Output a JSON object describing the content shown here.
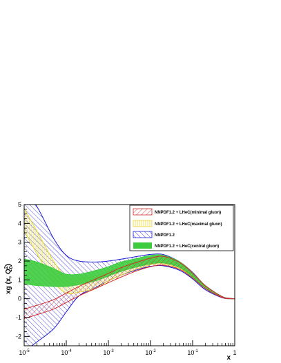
{
  "chart_data": {
    "type": "area",
    "x_scale": "log",
    "xlim": [
      1e-05,
      1
    ],
    "ylim": [
      -2.5,
      5
    ],
    "xlabel": "x",
    "ylabel_main": "xg (x, Q",
    "ylabel_sup": "2",
    "ylabel_sub": "0",
    "ylabel_end": ")",
    "grid": false,
    "legend_position": "top-right",
    "x_ticks": [
      {
        "value": 1e-05,
        "base": "10",
        "exp": "-5"
      },
      {
        "value": 0.0001,
        "base": "10",
        "exp": "-4"
      },
      {
        "value": 0.001,
        "base": "10",
        "exp": "-3"
      },
      {
        "value": 0.01,
        "base": "10",
        "exp": "-2"
      },
      {
        "value": 0.1,
        "base": "10",
        "exp": "-1"
      },
      {
        "value": 1,
        "base": "1",
        "exp": ""
      }
    ],
    "y_ticks": [
      -2,
      -1,
      0,
      1,
      2,
      3,
      4,
      5
    ],
    "x": [
      1e-05,
      2e-05,
      5e-05,
      0.0001,
      0.0002,
      0.0005,
      0.001,
      0.002,
      0.005,
      0.01,
      0.02,
      0.05,
      0.1,
      0.2,
      0.5,
      0.8,
      1
    ],
    "series": [
      {
        "name": "NNPDF1.2",
        "style": "hatch-backslash",
        "color": "#1a1ad6",
        "upper": [
          5.6,
          4.9,
          3.2,
          2.3,
          2.0,
          1.95,
          2.0,
          2.1,
          2.25,
          2.35,
          2.35,
          1.95,
          1.4,
          0.7,
          0.12,
          0.02,
          0.0
        ],
        "lower": [
          -2.8,
          -2.3,
          -1.6,
          -0.7,
          0.15,
          0.6,
          0.95,
          1.25,
          1.55,
          1.72,
          1.75,
          1.5,
          1.05,
          0.48,
          0.05,
          0.0,
          0.0
        ]
      },
      {
        "name": "NNPDF1.2 + LHeC(maximal gluon)",
        "style": "hatch-vertical",
        "color": "#e8d83a",
        "upper": [
          4.8,
          3.6,
          2.0,
          1.15,
          1.1,
          1.2,
          1.45,
          1.7,
          2.0,
          2.2,
          2.25,
          1.9,
          1.35,
          0.68,
          0.1,
          0.01,
          0.0
        ],
        "lower": [
          3.6,
          2.4,
          0.9,
          0.3,
          0.35,
          0.55,
          0.95,
          1.25,
          1.6,
          1.8,
          1.85,
          1.6,
          1.12,
          0.55,
          0.07,
          0.0,
          0.0
        ]
      },
      {
        "name": "NNPDF1.2 + LHeC(central gluon)",
        "style": "solid",
        "color": "#3dcc3d",
        "upper": [
          2.1,
          1.95,
          1.6,
          1.3,
          1.3,
          1.5,
          1.7,
          1.95,
          2.15,
          2.3,
          2.3,
          1.95,
          1.38,
          0.7,
          0.12,
          0.02,
          0.0
        ],
        "lower": [
          0.8,
          0.7,
          0.65,
          0.65,
          0.75,
          0.95,
          1.2,
          1.45,
          1.7,
          1.85,
          1.9,
          1.65,
          1.15,
          0.56,
          0.08,
          0.0,
          0.0
        ]
      },
      {
        "name": "NNPDF1.2 + LHeC(minimal gluon)",
        "style": "hatch-slash",
        "color": "#d42a2a",
        "upper": [
          -0.55,
          -0.35,
          -0.05,
          0.3,
          0.65,
          1.05,
          1.35,
          1.65,
          1.95,
          2.15,
          2.25,
          1.92,
          1.36,
          0.69,
          0.11,
          0.01,
          0.0
        ],
        "lower": [
          -1.05,
          -0.85,
          -0.55,
          -0.2,
          0.15,
          0.55,
          0.85,
          1.15,
          1.5,
          1.7,
          1.78,
          1.55,
          1.1,
          0.54,
          0.07,
          0.0,
          0.0
        ]
      }
    ],
    "legend": [
      {
        "label": "NNPDF1.2 + LHeC(minimal gluon)",
        "style": "hatch-slash",
        "color": "#d42a2a"
      },
      {
        "label": "NNPDF1.2 + LHeC(maximal gluon)",
        "style": "hatch-vertical",
        "color": "#e8d83a"
      },
      {
        "label": "NNPDF1.2",
        "style": "hatch-backslash",
        "color": "#1a1ad6"
      },
      {
        "label": "NNPDF1.2 + LHeC(central gluon)",
        "style": "solid",
        "color": "#3dcc3d"
      }
    ]
  }
}
